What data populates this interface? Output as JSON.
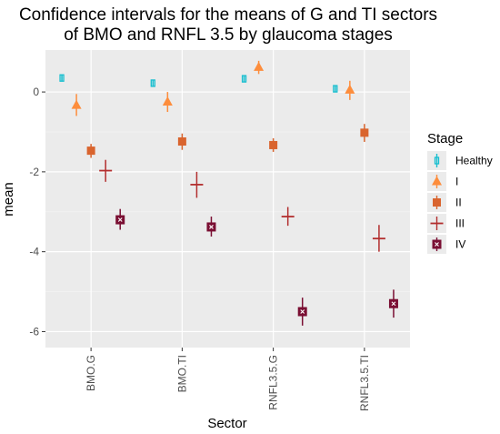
{
  "chart_data": {
    "type": "scatter",
    "title_lines": [
      "Confidence intervals for the means of G and TI sectors",
      "of BMO and RNFL 3.5 by glaucoma stages"
    ],
    "xlabel": "Sector",
    "ylabel": "mean",
    "categories": [
      "BMO.G",
      "BMO.TI",
      "RNFL3.5.G",
      "RNFL3.5.TI"
    ],
    "ylim": [
      -6.4,
      1.05
    ],
    "yticks": [
      0,
      -2,
      -4,
      -6
    ],
    "ytick_labels": [
      "0",
      "-2",
      "-4",
      "-6"
    ],
    "grid": true,
    "legend": {
      "title": "Stage",
      "position": "right"
    },
    "series": [
      {
        "name": "Healthy",
        "color": "#17becf",
        "shape": "open-square",
        "mean": [
          0.35,
          0.22,
          0.33,
          0.08
        ],
        "lower": [
          0.27,
          0.14,
          0.25,
          0.0
        ],
        "upper": [
          0.43,
          0.3,
          0.41,
          0.16
        ]
      },
      {
        "name": "I",
        "color": "#fd8d3c",
        "shape": "triangle",
        "mean": [
          -0.33,
          -0.25,
          0.62,
          0.05
        ],
        "lower": [
          -0.6,
          -0.5,
          0.45,
          -0.2
        ],
        "upper": [
          -0.05,
          0.0,
          0.78,
          0.28
        ]
      },
      {
        "name": "II",
        "color": "#d9642e",
        "shape": "square",
        "mean": [
          -1.47,
          -1.24,
          -1.33,
          -1.02
        ],
        "lower": [
          -1.65,
          -1.45,
          -1.5,
          -1.25
        ],
        "upper": [
          -1.3,
          -1.04,
          -1.16,
          -0.8
        ]
      },
      {
        "name": "III",
        "color": "#b22e2e",
        "shape": "plus",
        "mean": [
          -1.97,
          -2.32,
          -3.12,
          -3.67
        ],
        "lower": [
          -2.25,
          -2.65,
          -3.35,
          -4.0
        ],
        "upper": [
          -1.7,
          -2.0,
          -2.88,
          -3.33
        ]
      },
      {
        "name": "IV",
        "color": "#7a0f33",
        "shape": "square-cross",
        "mean": [
          -3.2,
          -3.38,
          -5.5,
          -5.3
        ],
        "lower": [
          -3.45,
          -3.62,
          -5.85,
          -5.65
        ],
        "upper": [
          -2.93,
          -3.12,
          -5.15,
          -4.95
        ]
      }
    ]
  }
}
